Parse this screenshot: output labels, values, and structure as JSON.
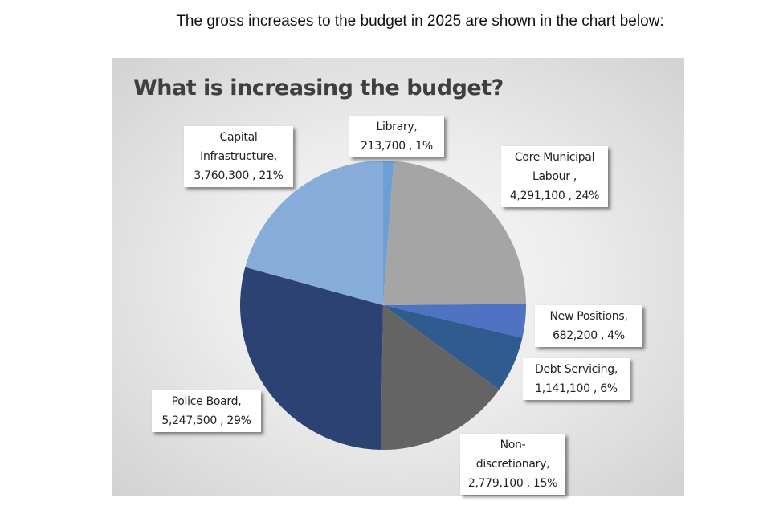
{
  "intro_text": "The gross increases to the budget in 2025 are shown in the chart below:",
  "chart_data": {
    "type": "pie",
    "title": "What is increasing the budget?",
    "slices": [
      {
        "label": "Library,",
        "value": 213700,
        "value_text": "213,700",
        "percent": "1%",
        "color": "#6b9fd6"
      },
      {
        "label": "Core Municipal Labour ,",
        "value": 4291100,
        "value_text": "4,291,100",
        "percent": "24%",
        "color": "#a5a5a5"
      },
      {
        "label": "New Positions,",
        "value": 682200,
        "value_text": "682,200",
        "percent": "4%",
        "color": "#4f72c2"
      },
      {
        "label": "Debt Servicing,",
        "value": 1141100,
        "value_text": "1,141,100",
        "percent": "6%",
        "color": "#2f5b8e"
      },
      {
        "label": "Non- discretionary,",
        "value": 2779100,
        "value_text": "2,779,100",
        "percent": "15%",
        "color": "#646464"
      },
      {
        "label": "Police Board,",
        "value": 5247500,
        "value_text": "5,247,500",
        "percent": "29%",
        "color": "#2c4273"
      },
      {
        "label": "Capital Infrastructure,",
        "value": 3760300,
        "value_text": "3,760,300",
        "percent": "21%",
        "color": "#86acd9"
      }
    ],
    "start": "top",
    "direction": "clockwise",
    "legend": "none"
  }
}
